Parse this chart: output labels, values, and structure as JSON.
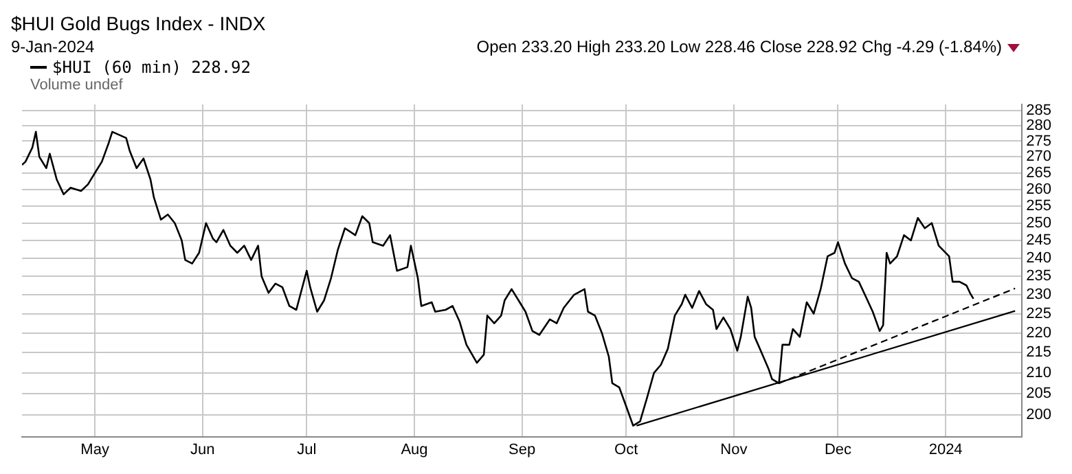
{
  "chart_data": {
    "type": "line",
    "title": "$HUI Gold Bugs Index - INDX",
    "subtitle": "9-Jan-2024",
    "annotations": [
      "Open 233.20 High 233.20 Low 228.46 Close 228.92 Chg -4.29 (-1.84%)",
      "Volume undef"
    ],
    "xlim": [
      "2023-04-10",
      "2024-01-23"
    ],
    "xticks": [
      {
        "value": "2023-05-01",
        "label": "May"
      },
      {
        "value": "2023-06-01",
        "label": "Jun"
      },
      {
        "value": "2023-07-01",
        "label": "Jul"
      },
      {
        "value": "2023-08-01",
        "label": "Aug"
      },
      {
        "value": "2023-09-01",
        "label": "Sep"
      },
      {
        "value": "2023-10-01",
        "label": "Oct"
      },
      {
        "value": "2023-11-01",
        "label": "Nov"
      },
      {
        "value": "2023-12-01",
        "label": "Dec"
      },
      {
        "value": "2024-01-01",
        "label": "2024"
      }
    ],
    "ylim": [
      195,
      287
    ],
    "yticks": [
      200,
      205,
      210,
      215,
      220,
      225,
      230,
      235,
      240,
      245,
      250,
      255,
      260,
      265,
      270,
      275,
      280,
      285
    ],
    "log": true,
    "grid": true,
    "legend": "top left",
    "series": [
      {
        "name": "$HUI (60 min) 228.92",
        "color": "#000000",
        "x": [
          "2023-04-10",
          "2023-04-11",
          "2023-04-13",
          "2023-04-14",
          "2023-04-15",
          "2023-04-17",
          "2023-04-18",
          "2023-04-19",
          "2023-04-20",
          "2023-04-22",
          "2023-04-24",
          "2023-04-27",
          "2023-04-29",
          "2023-05-01",
          "2023-05-03",
          "2023-05-05",
          "2023-05-06",
          "2023-05-08",
          "2023-05-10",
          "2023-05-11",
          "2023-05-13",
          "2023-05-15",
          "2023-05-17",
          "2023-05-18",
          "2023-05-20",
          "2023-05-22",
          "2023-05-24",
          "2023-05-26",
          "2023-05-27",
          "2023-05-29",
          "2023-05-31",
          "2023-06-02",
          "2023-06-04",
          "2023-06-05",
          "2023-06-07",
          "2023-06-09",
          "2023-06-11",
          "2023-06-13",
          "2023-06-15",
          "2023-06-17",
          "2023-06-18",
          "2023-06-20",
          "2023-06-22",
          "2023-06-24",
          "2023-06-26",
          "2023-06-28",
          "2023-07-01",
          "2023-07-02",
          "2023-07-04",
          "2023-07-06",
          "2023-07-08",
          "2023-07-10",
          "2023-07-12",
          "2023-07-15",
          "2023-07-17",
          "2023-07-19",
          "2023-07-20",
          "2023-07-23",
          "2023-07-25",
          "2023-07-27",
          "2023-07-30",
          "2023-07-31",
          "2023-08-02",
          "2023-08-03",
          "2023-08-06",
          "2023-08-07",
          "2023-08-10",
          "2023-08-12",
          "2023-08-14",
          "2023-08-16",
          "2023-08-19",
          "2023-08-21",
          "2023-08-22",
          "2023-08-24",
          "2023-08-26",
          "2023-08-27",
          "2023-08-29",
          "2023-08-31",
          "2023-09-02",
          "2023-09-04",
          "2023-09-06",
          "2023-09-09",
          "2023-09-11",
          "2023-09-13",
          "2023-09-16",
          "2023-09-19",
          "2023-09-20",
          "2023-09-22",
          "2023-09-24",
          "2023-09-26",
          "2023-09-27",
          "2023-09-29",
          "2023-10-01",
          "2023-10-03",
          "2023-10-05",
          "2023-10-07",
          "2023-10-09",
          "2023-10-11",
          "2023-10-13",
          "2023-10-15",
          "2023-10-17",
          "2023-10-18",
          "2023-10-20",
          "2023-10-22",
          "2023-10-24",
          "2023-10-26",
          "2023-10-27",
          "2023-10-29",
          "2023-10-31",
          "2023-11-02",
          "2023-11-03",
          "2023-11-05",
          "2023-11-06",
          "2023-11-07",
          "2023-11-09",
          "2023-11-11",
          "2023-11-12",
          "2023-11-14",
          "2023-11-15",
          "2023-11-17",
          "2023-11-18",
          "2023-11-20",
          "2023-11-22",
          "2023-11-24",
          "2023-11-26",
          "2023-11-28",
          "2023-11-30",
          "2023-12-01",
          "2023-12-03",
          "2023-12-05",
          "2023-12-07",
          "2023-12-09",
          "2023-12-11",
          "2023-12-13",
          "2023-12-14",
          "2023-12-15",
          "2023-12-16",
          "2023-12-18",
          "2023-12-20",
          "2023-12-22",
          "2023-12-24",
          "2023-12-26",
          "2023-12-28",
          "2023-12-30",
          "2024-01-02",
          "2024-01-03",
          "2024-01-05",
          "2024-01-07",
          "2024-01-08",
          "2024-01-09"
        ],
        "values": [
          267.5,
          268.5,
          273,
          278,
          270,
          266.5,
          271,
          267,
          263,
          258.5,
          260.5,
          259.5,
          261.5,
          265,
          268.5,
          274.5,
          278,
          277,
          276,
          272,
          266.5,
          269.5,
          263,
          257.5,
          251,
          252.5,
          250,
          245,
          239.5,
          238.5,
          241.5,
          250,
          245.5,
          244.5,
          248,
          243.5,
          241.5,
          243.5,
          239.5,
          243.5,
          235,
          230.5,
          233,
          232,
          227,
          226,
          236.5,
          232,
          225.5,
          228.5,
          234.5,
          242.5,
          248.5,
          246.5,
          252,
          250,
          244.5,
          243.5,
          246.5,
          236.5,
          237.5,
          243.5,
          234.5,
          227,
          228,
          225.5,
          226,
          227,
          223,
          217,
          212.5,
          214.5,
          224.5,
          222.5,
          224.5,
          228.5,
          231.5,
          228.5,
          225.5,
          220.5,
          219.5,
          223.5,
          222.5,
          226.5,
          230,
          231.5,
          225.5,
          224.5,
          220,
          214,
          207.5,
          206.5,
          202,
          197.5,
          198.5,
          204,
          210,
          212,
          216,
          224.5,
          227.5,
          230,
          226.5,
          231,
          227.5,
          226,
          221,
          224,
          221,
          215.5,
          219,
          229.5,
          226.5,
          219,
          215,
          211,
          208.5,
          207.5,
          217,
          217,
          221,
          219,
          228,
          225,
          231.5,
          240.5,
          241.5,
          244.5,
          238.5,
          234.5,
          233.5,
          229.5,
          225.5,
          220.5,
          222,
          241.5,
          238.5,
          240.5,
          246.5,
          245,
          251.5,
          248.5,
          250,
          243.5,
          240.5,
          233.5,
          233.5,
          232.5,
          230.5,
          228.92
        ]
      },
      {
        "type": "line",
        "color": "#000000",
        "x": [
          "2023-10-04",
          "2024-01-21"
        ],
        "values": [
          197.5,
          225.7
        ]
      },
      {
        "type": "line",
        "color": "#000000",
        "line_style": "dashed",
        "x": [
          "2023-11-14",
          "2024-01-21"
        ],
        "values": [
          207.5,
          231.7
        ]
      }
    ]
  }
}
